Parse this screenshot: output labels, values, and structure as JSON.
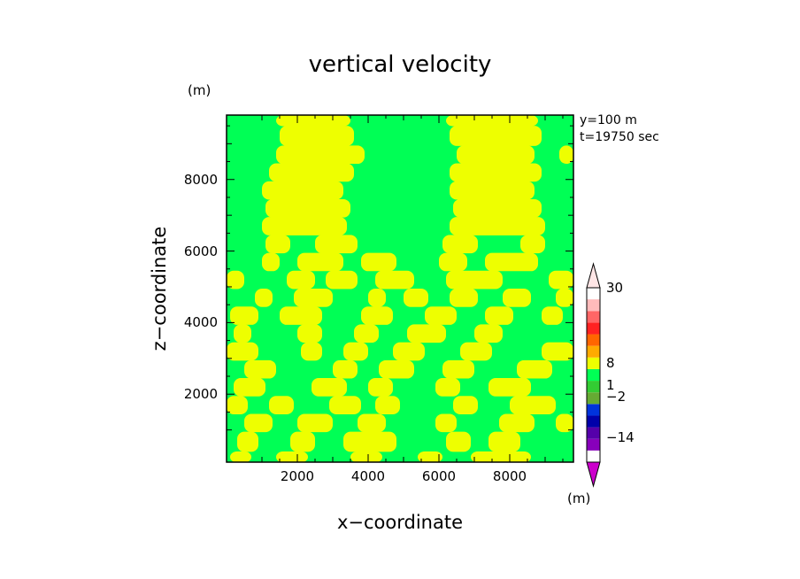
{
  "chart_data": {
    "type": "heatmap",
    "title": "vertical velocity",
    "xlabel": "x−coordinate",
    "ylabel": "z−coordinate",
    "y_unit": "(m)",
    "annotations": [
      "y=100  m",
      "t=19750 sec"
    ],
    "xlim": [
      0,
      9800
    ],
    "ylim": [
      100,
      9800
    ],
    "xticks": [
      2000,
      4000,
      6000,
      8000
    ],
    "xtick_labels": [
      "2000",
      "4000",
      "6000",
      "8000"
    ],
    "yticks": [
      2000,
      4000,
      6000,
      8000
    ],
    "ytick_labels": [
      "2000",
      "4000",
      "6000",
      "8000"
    ],
    "colorbar": {
      "unit": "(m)",
      "labels": [
        {
          "value": 30,
          "text": "30"
        },
        {
          "value": 8,
          "text": "8"
        },
        {
          "value": 1,
          "text": "1"
        },
        {
          "value": -2,
          "text": "−2"
        },
        {
          "value": -14,
          "text": "−14"
        }
      ],
      "colors": [
        "#cc00cc",
        "#8800bb",
        "#5500aa",
        "#0000aa",
        "#0033dd",
        "#66aa33",
        "#33cc33",
        "#00ff55",
        "#eeff00",
        "#ffaa00",
        "#ff6600",
        "#ff2222",
        "#ff6666",
        "#ffbbbb",
        "#ffe6e6"
      ]
    },
    "field_colors": {
      "positive": "#eeff00",
      "negative": "#00ff55"
    },
    "bands": [
      {
        "z": 100,
        "cols": [
          [
            100,
            700
          ],
          [
            1400,
            2300
          ],
          [
            3500,
            4400
          ],
          [
            5400,
            6100
          ],
          [
            6900,
            8600
          ]
        ]
      },
      {
        "z": 700,
        "cols": [
          [
            300,
            900
          ],
          [
            1800,
            2500
          ],
          [
            3300,
            4800
          ],
          [
            6200,
            6900
          ],
          [
            7400,
            8300
          ]
        ]
      },
      {
        "z": 1200,
        "cols": [
          [
            500,
            1300
          ],
          [
            2000,
            3000
          ],
          [
            3700,
            4500
          ],
          [
            5900,
            6500
          ],
          [
            7700,
            8700
          ],
          [
            9300,
            9800
          ]
        ]
      },
      {
        "z": 1700,
        "cols": [
          [
            0,
            600
          ],
          [
            1200,
            1900
          ],
          [
            2900,
            3800
          ],
          [
            4200,
            4900
          ],
          [
            6400,
            7100
          ],
          [
            8000,
            9300
          ]
        ]
      },
      {
        "z": 2200,
        "cols": [
          [
            200,
            1100
          ],
          [
            2400,
            3400
          ],
          [
            4000,
            4700
          ],
          [
            5900,
            6600
          ],
          [
            7400,
            8600
          ]
        ]
      },
      {
        "z": 2700,
        "cols": [
          [
            500,
            1400
          ],
          [
            3000,
            3700
          ],
          [
            4300,
            5300
          ],
          [
            6100,
            7000
          ],
          [
            8200,
            9200
          ]
        ]
      },
      {
        "z": 3200,
        "cols": [
          [
            0,
            900
          ],
          [
            2100,
            2700
          ],
          [
            3300,
            4000
          ],
          [
            4700,
            5600
          ],
          [
            6600,
            7500
          ],
          [
            8900,
            9800
          ]
        ]
      },
      {
        "z": 3700,
        "cols": [
          [
            200,
            700
          ],
          [
            2000,
            2700
          ],
          [
            3600,
            4300
          ],
          [
            5100,
            6200
          ],
          [
            7000,
            7800
          ]
        ]
      },
      {
        "z": 4200,
        "cols": [
          [
            100,
            900
          ],
          [
            1500,
            2700
          ],
          [
            3800,
            4700
          ],
          [
            5600,
            6500
          ],
          [
            7300,
            8100
          ],
          [
            8900,
            9500
          ]
        ]
      },
      {
        "z": 4700,
        "cols": [
          [
            800,
            1300
          ],
          [
            1900,
            3000
          ],
          [
            4000,
            4500
          ],
          [
            5000,
            5700
          ],
          [
            6300,
            7100
          ],
          [
            7800,
            8600
          ],
          [
            9300,
            9800
          ]
        ]
      },
      {
        "z": 5200,
        "cols": [
          [
            0,
            500
          ],
          [
            1700,
            2500
          ],
          [
            2800,
            3700
          ],
          [
            4200,
            5300
          ],
          [
            6200,
            7800
          ],
          [
            9100,
            9800
          ]
        ]
      },
      {
        "z": 5700,
        "cols": [
          [
            1000,
            1500
          ],
          [
            2000,
            3300
          ],
          [
            3800,
            4800
          ],
          [
            6000,
            6800
          ],
          [
            7300,
            8800
          ]
        ]
      },
      {
        "z": 6200,
        "cols": [
          [
            1100,
            1800
          ],
          [
            2500,
            3700
          ],
          [
            6100,
            7100
          ],
          [
            8300,
            9000
          ]
        ]
      },
      {
        "z": 6700,
        "cols": [
          [
            1000,
            3400
          ],
          [
            6300,
            9000
          ]
        ]
      },
      {
        "z": 7200,
        "cols": [
          [
            1100,
            3500
          ],
          [
            6400,
            8900
          ]
        ]
      },
      {
        "z": 7700,
        "cols": [
          [
            1000,
            3300
          ],
          [
            6300,
            8700
          ]
        ]
      },
      {
        "z": 8200,
        "cols": [
          [
            1200,
            3600
          ],
          [
            6300,
            8900
          ]
        ]
      },
      {
        "z": 8700,
        "cols": [
          [
            1400,
            3900
          ],
          [
            6500,
            8700
          ],
          [
            9400,
            9800
          ]
        ]
      },
      {
        "z": 9200,
        "cols": [
          [
            1500,
            3600
          ],
          [
            6300,
            8900
          ]
        ]
      },
      {
        "z": 9800,
        "cols": [
          [
            1400,
            3500
          ],
          [
            6200,
            8800
          ]
        ]
      }
    ]
  }
}
